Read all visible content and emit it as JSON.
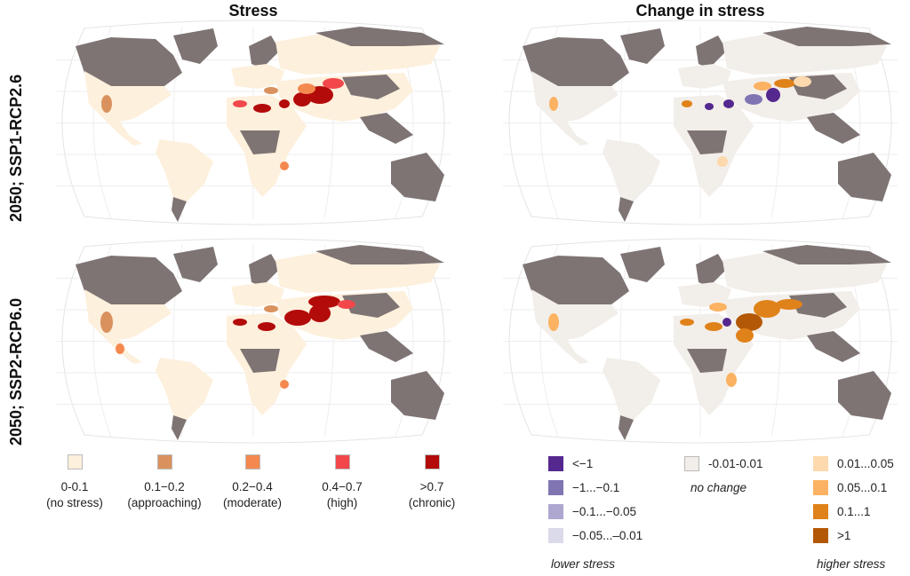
{
  "columns": {
    "left": "Stress",
    "right": "Change in stress"
  },
  "rows": {
    "top": "2050; SSP1-RCP2.6",
    "bottom": "2050; SSP2-RCP6.0"
  },
  "colors": {
    "unavailable": "#7e7473",
    "no_stress": "#fdf0dc",
    "no_change": "#f2eee9"
  },
  "stress_legend": [
    {
      "range": "0-0.1",
      "label": "(no stress)",
      "color": "#fdf0dc"
    },
    {
      "range": "0.1−0.2",
      "label": "(approaching)",
      "color": "#d9925e"
    },
    {
      "range": "0.2−0.4",
      "label": "(moderate)",
      "color": "#f4894f"
    },
    {
      "range": "0.4−0.7",
      "label": "(high)",
      "color": "#f2474b"
    },
    {
      "range": ">0.7",
      "label": "(chronic)",
      "color": "#b30a0a"
    }
  ],
  "change_legend": {
    "lower": [
      {
        "label": "<−1",
        "color": "#55288f"
      },
      {
        "label": "−1...−0.1",
        "color": "#8074b3"
      },
      {
        "label": "−0.1...−0.05",
        "color": "#aea7d0"
      },
      {
        "label": "−0.05...–0.01",
        "color": "#dadaeb"
      }
    ],
    "neutral": {
      "label": "-0.01-0.01",
      "color": "#f2eee9",
      "caption": "no change"
    },
    "higher": [
      {
        "label": "0.01...0.05",
        "color": "#fdd9ad"
      },
      {
        "label": "0.05...0.1",
        "color": "#fbb262"
      },
      {
        "label": "0.1...1",
        "color": "#e0821a"
      },
      {
        "label": ">1",
        "color": "#b35806"
      }
    ],
    "lower_caption": "lower stress",
    "higher_caption": "higher stress"
  }
}
